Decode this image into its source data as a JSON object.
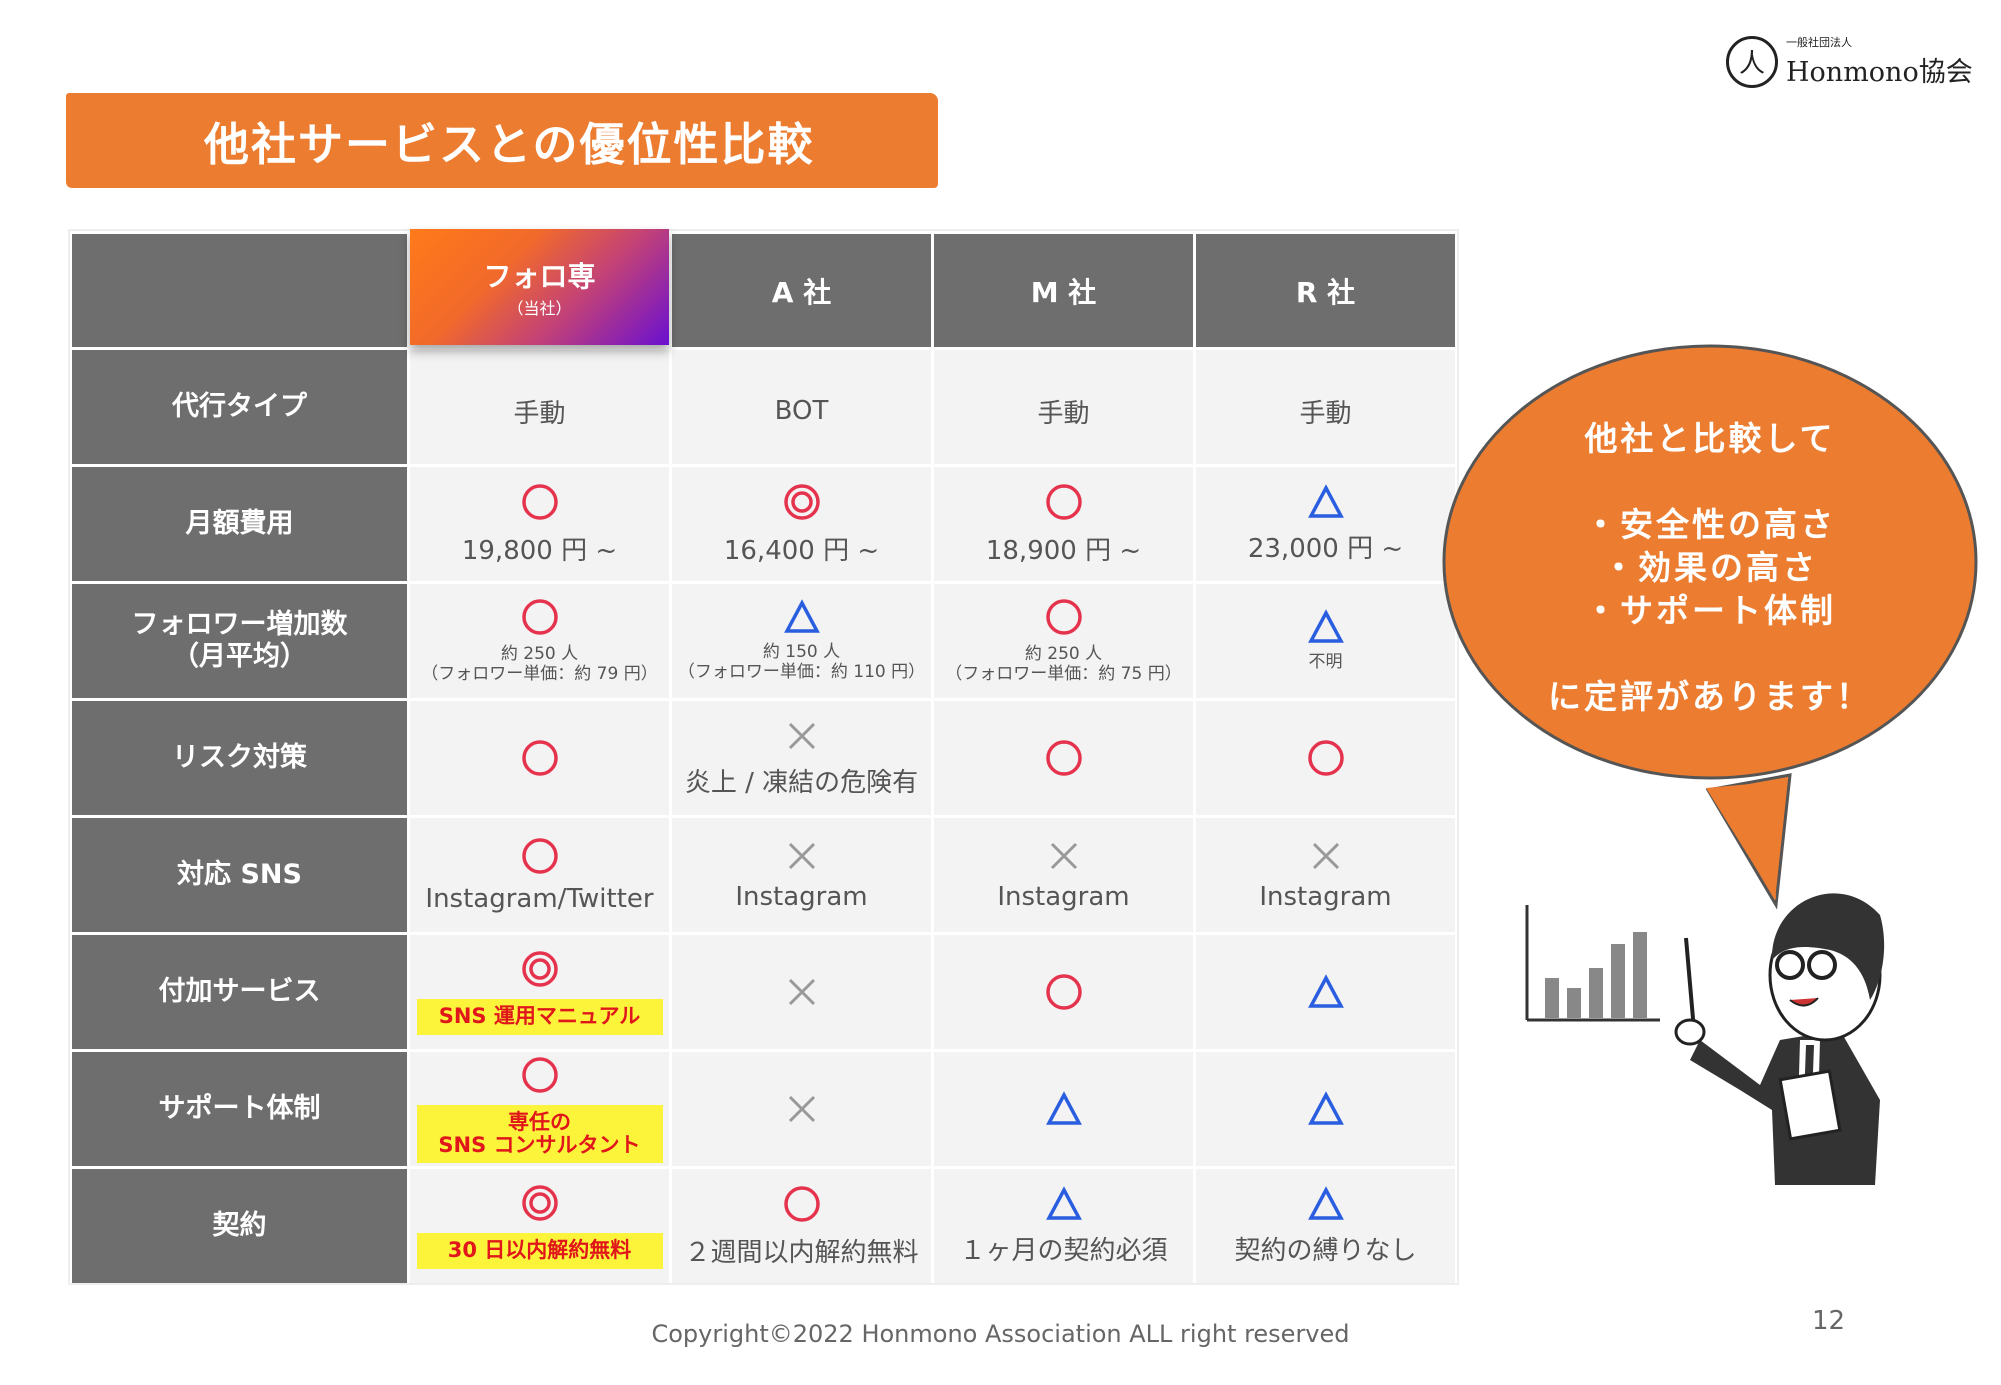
{
  "title": "他社サービスとの優位性比較",
  "logo": {
    "small": "一般社団法人",
    "name": "Honmono協会"
  },
  "colors": {
    "accent": "#ec7c30",
    "circle": "#e5334d",
    "triangle": "#2a5ee0",
    "cross": "#999999",
    "highlight": "#fbf43a"
  },
  "table": {
    "columns": [
      {
        "name": "フォロ専",
        "sub": "（当社）"
      },
      {
        "name": "A 社"
      },
      {
        "name": "M 社"
      },
      {
        "name": "R 社"
      }
    ],
    "rows": [
      {
        "label": "代行タイプ",
        "cells": [
          {
            "text": "手動"
          },
          {
            "text": "BOT"
          },
          {
            "text": "手動"
          },
          {
            "text": "手動"
          }
        ]
      },
      {
        "label": "月額費用",
        "cells": [
          {
            "mark": "circle",
            "text": "19,800 円 ~"
          },
          {
            "mark": "double-circle",
            "text": "16,400 円 ~"
          },
          {
            "mark": "circle",
            "text": "18,900 円 ~"
          },
          {
            "mark": "triangle",
            "text": "23,000 円 ~"
          }
        ]
      },
      {
        "label": "フォロワー増加数\n（月平均）",
        "cells": [
          {
            "mark": "circle",
            "small": "約 250 人\n（フォロワー単価：約 79 円）"
          },
          {
            "mark": "triangle",
            "small": "約 150 人\n（フォロワー単価：約 110 円）"
          },
          {
            "mark": "circle",
            "small": "約 250 人\n（フォロワー単価：約 75 円）"
          },
          {
            "mark": "triangle",
            "small": "不明"
          }
        ]
      },
      {
        "label": "リスク対策",
        "cells": [
          {
            "mark": "circle"
          },
          {
            "mark": "cross",
            "text": "炎上 / 凍結の危険有"
          },
          {
            "mark": "circle"
          },
          {
            "mark": "circle"
          }
        ]
      },
      {
        "label": "対応 SNS",
        "cells": [
          {
            "mark": "circle",
            "text": "Instagram/Twitter"
          },
          {
            "mark": "cross",
            "text": "Instagram"
          },
          {
            "mark": "cross",
            "text": "Instagram"
          },
          {
            "mark": "cross",
            "text": "Instagram"
          }
        ]
      },
      {
        "label": "付加サービス",
        "cells": [
          {
            "mark": "double-circle",
            "highlight": "SNS 運用マニュアル"
          },
          {
            "mark": "cross"
          },
          {
            "mark": "circle"
          },
          {
            "mark": "triangle"
          }
        ]
      },
      {
        "label": "サポート体制",
        "cells": [
          {
            "mark": "circle",
            "highlight": "専任の\nSNS コンサルタント"
          },
          {
            "mark": "cross"
          },
          {
            "mark": "triangle"
          },
          {
            "mark": "triangle"
          }
        ]
      },
      {
        "label": "契約",
        "cells": [
          {
            "mark": "double-circle",
            "highlight": "30 日以内解約無料"
          },
          {
            "mark": "circle",
            "text": "２週間以内解約無料"
          },
          {
            "mark": "triangle",
            "text": "１ヶ月の契約必須"
          },
          {
            "mark": "triangle",
            "text": "契約の縛りなし"
          }
        ]
      }
    ]
  },
  "bubble": {
    "lines": [
      "他社と比較して",
      "",
      "・安全性の高さ",
      "・効果の高さ",
      "・サポート体制",
      "",
      "に定評があります！"
    ]
  },
  "footer": "Copyright©2022 Honmono Association ALL  right reserved",
  "page_number": "12"
}
